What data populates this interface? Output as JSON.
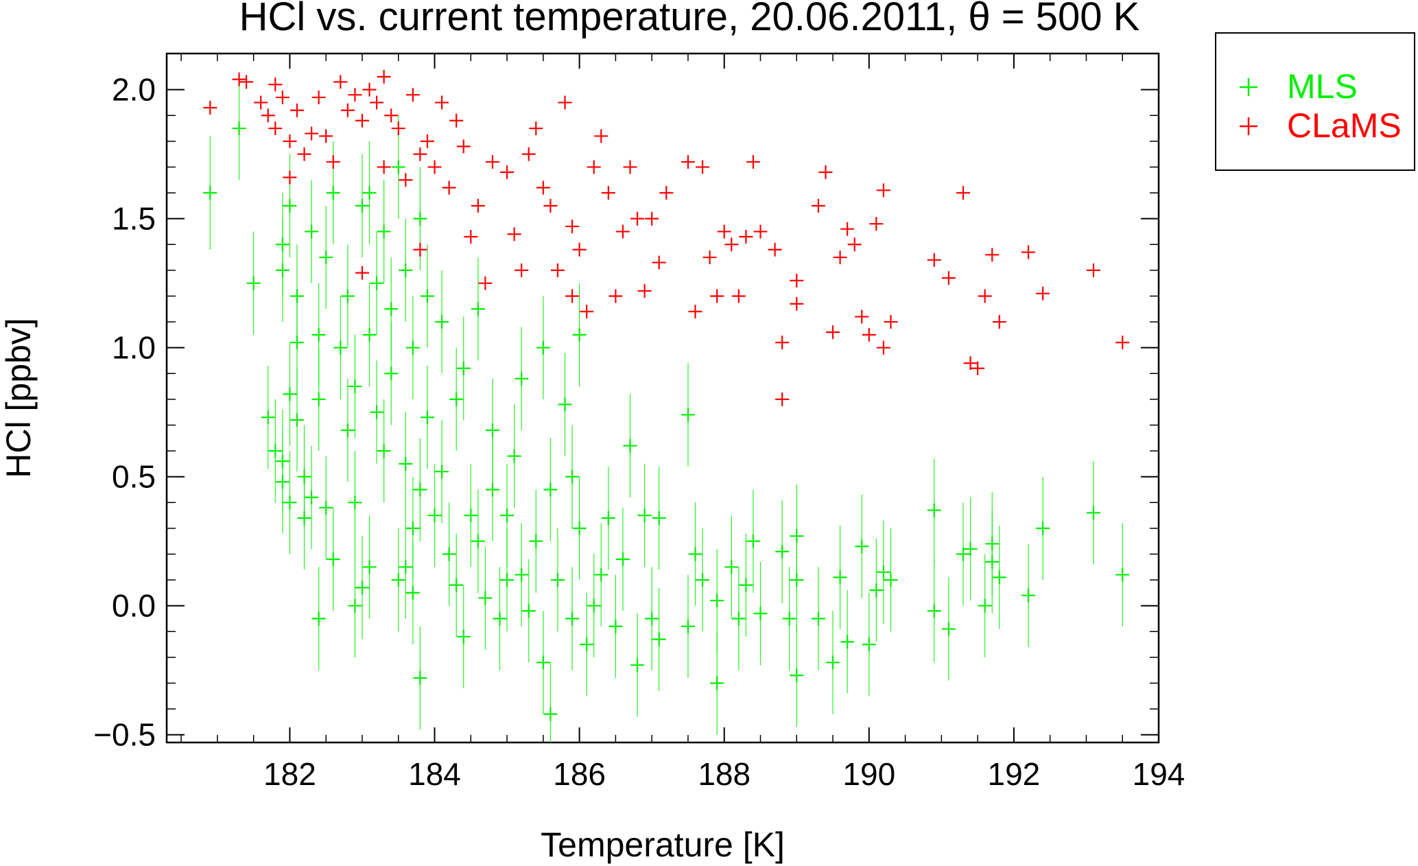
{
  "chart_data": {
    "type": "scatter",
    "title": "HCl vs. current temperature, 20.06.2011, θ = 500 K",
    "xlabel": "Temperature [K]",
    "ylabel": "HCl [ppbv]",
    "xlim": [
      180.3,
      194
    ],
    "ylim": [
      -0.53,
      2.14
    ],
    "xticks": [
      182,
      184,
      186,
      188,
      190,
      192,
      194
    ],
    "xtick_labels": [
      "182",
      "184",
      "186",
      "188",
      "190",
      "192",
      "194"
    ],
    "yticks": [
      -0.5,
      0.0,
      0.5,
      1.0,
      1.5,
      2.0
    ],
    "ytick_labels": [
      "−0.5",
      "0.0",
      "0.5",
      "1.0",
      "1.5",
      "2.0"
    ],
    "grid": false,
    "legend_placement": "outside-top-right",
    "series": [
      {
        "name": "MLS",
        "color": "#00ee00",
        "marker": "plus",
        "error_bars": true,
        "points": [
          [
            180.9,
            1.6,
            0.22
          ],
          [
            181.3,
            1.85,
            0.2
          ],
          [
            181.5,
            1.25,
            0.2
          ],
          [
            181.7,
            0.73,
            0.2
          ],
          [
            181.8,
            0.6,
            0.2
          ],
          [
            181.9,
            0.48,
            0.2
          ],
          [
            181.9,
            0.56,
            0.2
          ],
          [
            181.9,
            1.4,
            0.2
          ],
          [
            181.9,
            1.3,
            0.2
          ],
          [
            182.0,
            1.55,
            0.2
          ],
          [
            182.0,
            0.82,
            0.2
          ],
          [
            182.0,
            0.4,
            0.2
          ],
          [
            182.1,
            1.2,
            0.2
          ],
          [
            182.1,
            1.02,
            0.2
          ],
          [
            182.1,
            0.72,
            0.2
          ],
          [
            182.2,
            0.5,
            0.2
          ],
          [
            182.2,
            0.34,
            0.2
          ],
          [
            182.3,
            0.42,
            0.2
          ],
          [
            182.3,
            1.45,
            0.2
          ],
          [
            182.4,
            1.05,
            0.2
          ],
          [
            182.4,
            0.8,
            0.2
          ],
          [
            182.4,
            -0.05,
            0.2
          ],
          [
            182.5,
            1.35,
            0.2
          ],
          [
            182.5,
            0.38,
            0.2
          ],
          [
            182.6,
            0.18,
            0.2
          ],
          [
            182.6,
            1.6,
            0.2
          ],
          [
            182.7,
            1.0,
            0.2
          ],
          [
            182.8,
            1.2,
            0.2
          ],
          [
            182.8,
            0.68,
            0.2
          ],
          [
            182.9,
            0.85,
            0.2
          ],
          [
            182.9,
            0.4,
            0.2
          ],
          [
            182.9,
            0.0,
            0.2
          ],
          [
            183.0,
            1.55,
            0.2
          ],
          [
            183.0,
            0.07,
            0.2
          ],
          [
            183.1,
            1.6,
            0.2
          ],
          [
            183.1,
            1.05,
            0.2
          ],
          [
            183.1,
            0.15,
            0.2
          ],
          [
            183.2,
            1.25,
            0.2
          ],
          [
            183.2,
            0.75,
            0.2
          ],
          [
            183.3,
            1.45,
            0.2
          ],
          [
            183.3,
            0.6,
            0.2
          ],
          [
            183.4,
            1.15,
            0.2
          ],
          [
            183.4,
            0.9,
            0.2
          ],
          [
            183.5,
            1.7,
            0.2
          ],
          [
            183.5,
            0.1,
            0.2
          ],
          [
            183.6,
            1.3,
            0.2
          ],
          [
            183.6,
            0.55,
            0.2
          ],
          [
            183.6,
            0.15,
            0.2
          ],
          [
            183.7,
            1.0,
            0.2
          ],
          [
            183.7,
            0.3,
            0.2
          ],
          [
            183.7,
            0.05,
            0.2
          ],
          [
            183.8,
            1.5,
            0.2
          ],
          [
            183.8,
            0.45,
            0.2
          ],
          [
            183.8,
            -0.28,
            0.2
          ],
          [
            183.9,
            1.2,
            0.2
          ],
          [
            183.9,
            0.73,
            0.2
          ],
          [
            184.0,
            0.35,
            0.2
          ],
          [
            184.1,
            1.1,
            0.2
          ],
          [
            184.1,
            0.52,
            0.2
          ],
          [
            184.2,
            0.2,
            0.2
          ],
          [
            184.3,
            0.08,
            0.2
          ],
          [
            184.3,
            0.8,
            0.2
          ],
          [
            184.4,
            -0.12,
            0.2
          ],
          [
            184.4,
            0.92,
            0.2
          ],
          [
            184.5,
            0.35,
            0.2
          ],
          [
            184.6,
            1.15,
            0.2
          ],
          [
            184.6,
            0.25,
            0.2
          ],
          [
            184.7,
            0.03,
            0.2
          ],
          [
            184.8,
            0.45,
            0.2
          ],
          [
            184.8,
            0.68,
            0.2
          ],
          [
            184.9,
            -0.05,
            0.2
          ],
          [
            185.0,
            0.1,
            0.2
          ],
          [
            185.0,
            0.35,
            0.2
          ],
          [
            185.1,
            0.58,
            0.2
          ],
          [
            185.2,
            0.88,
            0.2
          ],
          [
            185.2,
            0.12,
            0.2
          ],
          [
            185.3,
            -0.02,
            0.2
          ],
          [
            185.4,
            0.25,
            0.2
          ],
          [
            185.5,
            -0.22,
            0.2
          ],
          [
            185.5,
            1.0,
            0.2
          ],
          [
            185.6,
            0.45,
            0.2
          ],
          [
            185.6,
            -0.42,
            0.2
          ],
          [
            185.7,
            0.1,
            0.2
          ],
          [
            185.8,
            0.78,
            0.2
          ],
          [
            185.9,
            0.5,
            0.2
          ],
          [
            185.9,
            -0.05,
            0.2
          ],
          [
            186.0,
            0.3,
            0.2
          ],
          [
            186.0,
            1.05,
            0.2
          ],
          [
            186.1,
            -0.15,
            0.2
          ],
          [
            186.2,
            0.0,
            0.2
          ],
          [
            186.3,
            0.12,
            0.2
          ],
          [
            186.4,
            0.34,
            0.2
          ],
          [
            186.5,
            -0.08,
            0.2
          ],
          [
            186.6,
            0.18,
            0.2
          ],
          [
            186.7,
            0.62,
            0.2
          ],
          [
            186.8,
            -0.23,
            0.2
          ],
          [
            186.9,
            0.35,
            0.2
          ],
          [
            187.0,
            -0.05,
            0.2
          ],
          [
            187.1,
            -0.13,
            0.2
          ],
          [
            187.1,
            0.34,
            0.2
          ],
          [
            187.5,
            0.74,
            0.2
          ],
          [
            187.5,
            -0.08,
            0.2
          ],
          [
            187.6,
            0.2,
            0.2
          ],
          [
            187.7,
            0.1,
            0.2
          ],
          [
            187.9,
            -0.3,
            0.2
          ],
          [
            187.9,
            0.02,
            0.2
          ],
          [
            188.1,
            0.15,
            0.2
          ],
          [
            188.2,
            -0.05,
            0.2
          ],
          [
            188.3,
            0.08,
            0.2
          ],
          [
            188.4,
            0.25,
            0.2
          ],
          [
            188.5,
            -0.03,
            0.2
          ],
          [
            188.8,
            0.21,
            0.2
          ],
          [
            188.9,
            -0.05,
            0.2
          ],
          [
            189.0,
            0.27,
            0.2
          ],
          [
            189.0,
            -0.27,
            0.2
          ],
          [
            189.0,
            0.1,
            0.2
          ],
          [
            189.3,
            -0.05,
            0.2
          ],
          [
            189.5,
            -0.22,
            0.2
          ],
          [
            189.6,
            0.11,
            0.2
          ],
          [
            189.7,
            -0.14,
            0.2
          ],
          [
            189.9,
            0.23,
            0.2
          ],
          [
            190.0,
            -0.15,
            0.2
          ],
          [
            190.1,
            0.06,
            0.2
          ],
          [
            190.2,
            0.13,
            0.2
          ],
          [
            190.3,
            0.1,
            0.2
          ],
          [
            190.9,
            0.37,
            0.2
          ],
          [
            190.9,
            -0.02,
            0.2
          ],
          [
            191.1,
            -0.09,
            0.2
          ],
          [
            191.3,
            0.2,
            0.2
          ],
          [
            191.4,
            0.22,
            0.2
          ],
          [
            191.6,
            0.0,
            0.2
          ],
          [
            191.7,
            0.24,
            0.2
          ],
          [
            191.7,
            0.17,
            0.2
          ],
          [
            191.8,
            0.11,
            0.2
          ],
          [
            192.2,
            0.04,
            0.2
          ],
          [
            192.4,
            0.3,
            0.2
          ],
          [
            193.1,
            0.36,
            0.2
          ],
          [
            193.5,
            0.12,
            0.2
          ]
        ]
      },
      {
        "name": "CLaMS",
        "color": "#ff0000",
        "marker": "plus",
        "error_bars": false,
        "points": [
          [
            180.9,
            1.93
          ],
          [
            181.3,
            2.04
          ],
          [
            181.4,
            2.03
          ],
          [
            181.6,
            1.95
          ],
          [
            181.7,
            1.9
          ],
          [
            181.8,
            1.85
          ],
          [
            181.8,
            2.02
          ],
          [
            181.9,
            1.97
          ],
          [
            182.0,
            1.8
          ],
          [
            182.0,
            1.66
          ],
          [
            182.1,
            1.92
          ],
          [
            182.2,
            1.75
          ],
          [
            182.3,
            1.83
          ],
          [
            182.4,
            1.97
          ],
          [
            182.5,
            1.82
          ],
          [
            182.6,
            1.72
          ],
          [
            182.7,
            2.03
          ],
          [
            182.8,
            1.92
          ],
          [
            182.9,
            1.98
          ],
          [
            183.0,
            1.88
          ],
          [
            183.0,
            1.29
          ],
          [
            183.1,
            2.0
          ],
          [
            183.2,
            1.95
          ],
          [
            183.3,
            2.05
          ],
          [
            183.3,
            1.7
          ],
          [
            183.4,
            1.9
          ],
          [
            183.5,
            1.85
          ],
          [
            183.6,
            1.65
          ],
          [
            183.7,
            1.98
          ],
          [
            183.8,
            1.75
          ],
          [
            183.8,
            1.38
          ],
          [
            183.9,
            1.8
          ],
          [
            184.0,
            1.7
          ],
          [
            184.1,
            1.95
          ],
          [
            184.2,
            1.62
          ],
          [
            184.3,
            1.88
          ],
          [
            184.4,
            1.78
          ],
          [
            184.5,
            1.43
          ],
          [
            184.6,
            1.55
          ],
          [
            184.7,
            1.25
          ],
          [
            184.8,
            1.72
          ],
          [
            185.0,
            1.68
          ],
          [
            185.1,
            1.44
          ],
          [
            185.2,
            1.3
          ],
          [
            185.3,
            1.75
          ],
          [
            185.4,
            1.85
          ],
          [
            185.5,
            1.62
          ],
          [
            185.6,
            1.55
          ],
          [
            185.7,
            1.3
          ],
          [
            185.8,
            1.95
          ],
          [
            185.9,
            1.47
          ],
          [
            185.9,
            1.2
          ],
          [
            186.0,
            1.38
          ],
          [
            186.1,
            1.14
          ],
          [
            186.2,
            1.7
          ],
          [
            186.3,
            1.82
          ],
          [
            186.4,
            1.6
          ],
          [
            186.5,
            1.2
          ],
          [
            186.6,
            1.45
          ],
          [
            186.7,
            1.7
          ],
          [
            186.8,
            1.5
          ],
          [
            186.9,
            1.22
          ],
          [
            187.0,
            1.5
          ],
          [
            187.1,
            1.33
          ],
          [
            187.2,
            1.6
          ],
          [
            187.5,
            1.72
          ],
          [
            187.6,
            1.14
          ],
          [
            187.7,
            1.7
          ],
          [
            187.8,
            1.35
          ],
          [
            187.9,
            1.2
          ],
          [
            188.0,
            1.45
          ],
          [
            188.1,
            1.4
          ],
          [
            188.2,
            1.2
          ],
          [
            188.3,
            1.43
          ],
          [
            188.4,
            1.72
          ],
          [
            188.5,
            1.45
          ],
          [
            188.7,
            1.38
          ],
          [
            188.8,
            1.02
          ],
          [
            188.8,
            0.8
          ],
          [
            189.0,
            1.26
          ],
          [
            189.0,
            1.17
          ],
          [
            189.3,
            1.55
          ],
          [
            189.4,
            1.68
          ],
          [
            189.5,
            1.06
          ],
          [
            189.6,
            1.35
          ],
          [
            189.7,
            1.46
          ],
          [
            189.8,
            1.4
          ],
          [
            189.9,
            1.12
          ],
          [
            190.0,
            1.05
          ],
          [
            190.1,
            1.48
          ],
          [
            190.2,
            1.61
          ],
          [
            190.2,
            1.0
          ],
          [
            190.3,
            1.1
          ],
          [
            190.9,
            1.34
          ],
          [
            191.1,
            1.27
          ],
          [
            191.3,
            1.6
          ],
          [
            191.4,
            0.94
          ],
          [
            191.5,
            0.92
          ],
          [
            191.6,
            1.2
          ],
          [
            191.7,
            1.36
          ],
          [
            191.8,
            1.1
          ],
          [
            192.2,
            1.37
          ],
          [
            192.4,
            1.21
          ],
          [
            193.1,
            1.3
          ],
          [
            193.5,
            1.02
          ]
        ]
      }
    ]
  }
}
